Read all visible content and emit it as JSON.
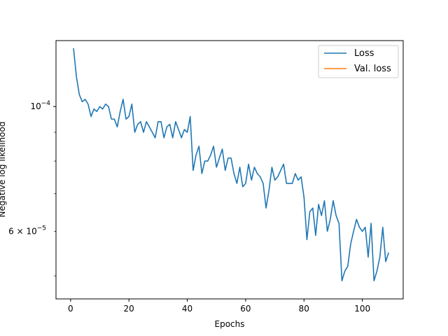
{
  "chart_data": {
    "type": "line",
    "title": "",
    "xlabel": "Epochs",
    "ylabel": "Negative log likelihood",
    "y_scale": "log",
    "xlim": [
      -5,
      114
    ],
    "ylim": [
      4.55e-05,
      0.000131
    ],
    "x_ticks": [
      0,
      20,
      40,
      60,
      80,
      100
    ],
    "x_tick_labels": [
      "0",
      "20",
      "40",
      "60",
      "80",
      "100"
    ],
    "y_major_ticks": [
      0.0001
    ],
    "y_major_tick_labels": [
      "10",
      "−4"
    ],
    "y_minor_ticks": [
      5e-05,
      6e-05,
      7e-05,
      8e-05,
      9e-05
    ],
    "y_minor_tick_labels": [
      "",
      "6 × 10",
      "",
      "",
      ""
    ],
    "y_minor_tick_exponents": [
      "",
      "−5",
      "",
      "",
      ""
    ],
    "grid": false,
    "legend_position": "top-right",
    "series": [
      {
        "name": "Loss",
        "color": "#1f77b4",
        "x": [
          1,
          2,
          3,
          4,
          5,
          6,
          7,
          8,
          9,
          10,
          11,
          12,
          13,
          14,
          15,
          16,
          17,
          18,
          19,
          20,
          21,
          22,
          23,
          24,
          25,
          26,
          27,
          28,
          29,
          30,
          31,
          32,
          33,
          34,
          35,
          36,
          37,
          38,
          39,
          40,
          41,
          42,
          43,
          44,
          45,
          46,
          47,
          48,
          49,
          50,
          51,
          52,
          53,
          54,
          55,
          56,
          57,
          58,
          59,
          60,
          61,
          62,
          63,
          64,
          65,
          66,
          67,
          68,
          69,
          70,
          71,
          72,
          73,
          74,
          75,
          76,
          77,
          78,
          79,
          80,
          81,
          82,
          83,
          84,
          85,
          86,
          87,
          88,
          89,
          90,
          91,
          92,
          93,
          94,
          95,
          96,
          97,
          98,
          99,
          100,
          101,
          102,
          103,
          104,
          105,
          106,
          107,
          108,
          109
        ],
        "y": [
          0.000127,
          0.000113,
          0.000105,
          0.000102,
          0.000103,
          0.000101,
          9.6e-05,
          9.9e-05,
          9.8e-05,
          0.0001,
          9.9e-05,
          0.000101,
          0.0001,
          9.5e-05,
          9.5e-05,
          9.2e-05,
          9.8e-05,
          0.000103,
          9.5e-05,
          9.6e-05,
          0.000101,
          9e-05,
          9.3e-05,
          9.4e-05,
          9e-05,
          9.4e-05,
          9.2e-05,
          9e-05,
          8.8e-05,
          9.4e-05,
          9.4e-05,
          8.8e-05,
          9.2e-05,
          9.3e-05,
          8.8e-05,
          9.4e-05,
          9.1e-05,
          8.8e-05,
          9.1e-05,
          9e-05,
          9.6e-05,
          7.7e-05,
          8.2e-05,
          8.5e-05,
          7.6e-05,
          8e-05,
          8e-05,
          8.2e-05,
          8.5e-05,
          7.8e-05,
          8.1e-05,
          8.4e-05,
          7.7e-05,
          8.1e-05,
          8.1e-05,
          7.6e-05,
          7.3e-05,
          7.8e-05,
          7.2e-05,
          7.3e-05,
          7.9e-05,
          7.4e-05,
          7.8e-05,
          7.6e-05,
          7.5e-05,
          7.3e-05,
          6.6e-05,
          7.1e-05,
          7.8e-05,
          7.4e-05,
          7.5e-05,
          7.7e-05,
          7.9e-05,
          7.3e-05,
          7.3e-05,
          7.3e-05,
          7.6e-05,
          7.4e-05,
          7.5e-05,
          6.9e-05,
          5.8e-05,
          6.5e-05,
          6.6e-05,
          5.9e-05,
          6.7e-05,
          6.4e-05,
          6.8e-05,
          6e-05,
          6.3e-05,
          6.8e-05,
          6.4e-05,
          6.2e-05,
          4.9e-05,
          5.1e-05,
          5.2e-05,
          5.7e-05,
          6e-05,
          6.3e-05,
          6.1e-05,
          6e-05,
          6.1e-05,
          5.4e-05,
          6.2e-05,
          4.9e-05,
          5.1e-05,
          5.4e-05,
          6.1e-05,
          5.3e-05,
          5.5e-05
        ]
      },
      {
        "name": "Val. loss",
        "color": "#ff7f0e",
        "x": [],
        "y": []
      }
    ]
  }
}
